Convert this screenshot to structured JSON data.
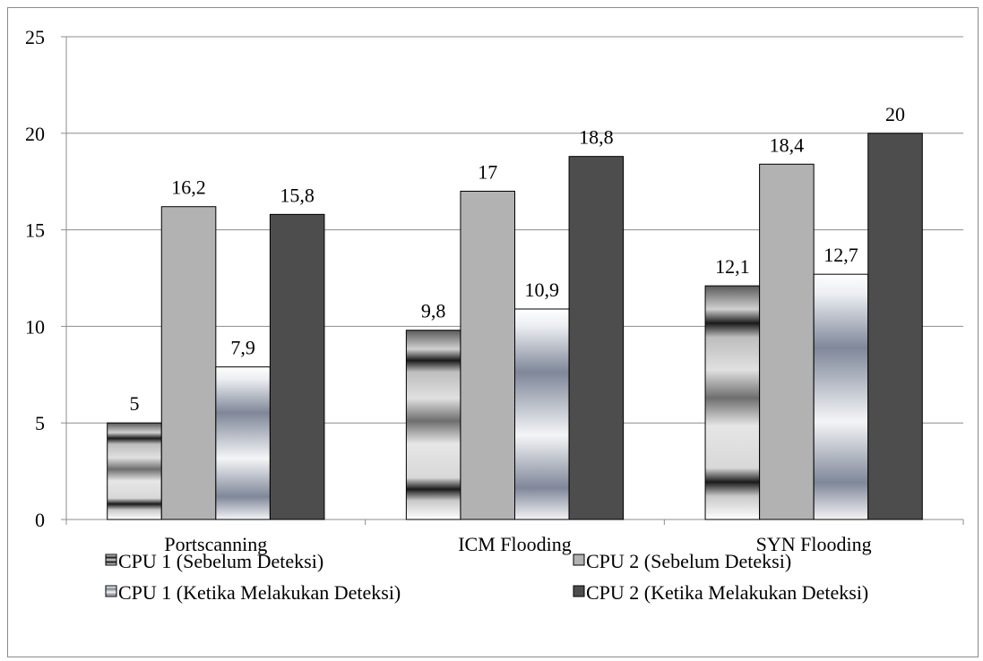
{
  "chart_data": {
    "type": "bar",
    "title": "",
    "xlabel": "",
    "ylabel": "",
    "categories": [
      "Portscanning",
      "ICM Flooding",
      "SYN Flooding"
    ],
    "series": [
      {
        "name": "CPU 1 (Sebelum Deteksi)",
        "values": [
          5,
          9.8,
          12.1
        ],
        "labels": [
          "5",
          "9,8",
          "12,1"
        ],
        "style": "striped-dark"
      },
      {
        "name": "CPU 2 (Sebelum Deteksi)",
        "values": [
          16.2,
          17,
          18.4
        ],
        "labels": [
          "16,2",
          "17",
          "18,4"
        ],
        "style": "light-gray",
        "color": "#b2b2b2"
      },
      {
        "name": "CPU 1 (Ketika Melakukan Deteksi)",
        "values": [
          7.9,
          10.9,
          12.7
        ],
        "labels": [
          "7,9",
          "10,9",
          "12,7"
        ],
        "style": "gradient-blue"
      },
      {
        "name": "CPU 2 (Ketika Melakukan Deteksi)",
        "values": [
          15.8,
          18.8,
          20
        ],
        "labels": [
          "15,8",
          "18,8",
          "20"
        ],
        "style": "dark-gray",
        "color": "#4d4d4d"
      }
    ],
    "ylim": [
      0,
      25
    ],
    "yticks": [
      "0",
      "5",
      "10",
      "15",
      "20",
      "25"
    ],
    "grid": true,
    "legend_position": "bottom"
  }
}
